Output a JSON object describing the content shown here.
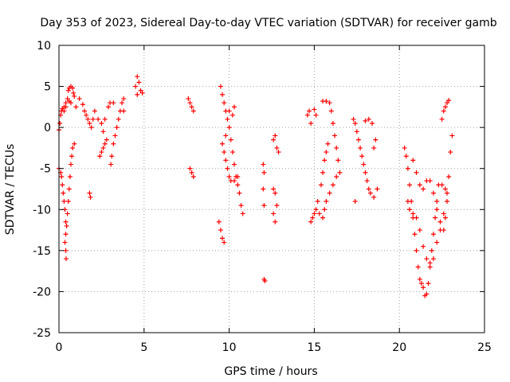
{
  "chart_data": {
    "type": "scatter",
    "title": "Day 353 of 2023, Sidereal Day-to-day VTEC variation (SDTVAR) for receiver gamb",
    "xlabel": "GPS time / hours",
    "ylabel": "SDTVAR / TECUs",
    "xlim": [
      0,
      25
    ],
    "ylim": [
      -25,
      10
    ],
    "xticks": [
      0,
      5,
      10,
      15,
      20,
      25
    ],
    "yticks": [
      -25,
      -20,
      -15,
      -10,
      -5,
      0,
      5,
      10
    ],
    "grid": true,
    "marker": "+",
    "series": [
      {
        "name": "SDTVAR",
        "color": "#ff0000",
        "points": [
          [
            0.0,
            -0.3
          ],
          [
            0.05,
            0.5
          ],
          [
            0.1,
            1.5
          ],
          [
            0.15,
            2.0
          ],
          [
            0.2,
            2.3
          ],
          [
            0.3,
            2.5
          ],
          [
            0.4,
            3.0
          ],
          [
            0.5,
            3.5
          ],
          [
            0.55,
            4.5
          ],
          [
            0.6,
            4.8
          ],
          [
            0.7,
            5.0
          ],
          [
            0.8,
            4.8
          ],
          [
            0.85,
            4.2
          ],
          [
            0.9,
            3.8
          ],
          [
            0.6,
            3.2
          ],
          [
            0.7,
            3.0
          ],
          [
            0.3,
            2.0
          ],
          [
            0.4,
            2.5
          ],
          [
            0.0,
            -5.0
          ],
          [
            0.1,
            -5.5
          ],
          [
            0.15,
            -6.0
          ],
          [
            0.2,
            -7.0
          ],
          [
            0.25,
            -8.0
          ],
          [
            0.3,
            -9.0
          ],
          [
            0.35,
            -10.0
          ],
          [
            0.4,
            -11.5
          ],
          [
            0.4,
            -13.0
          ],
          [
            0.4,
            -15.0
          ],
          [
            0.42,
            -16.0
          ],
          [
            0.45,
            -12.0
          ],
          [
            0.5,
            -10.5
          ],
          [
            0.55,
            -9.0
          ],
          [
            0.6,
            -7.5
          ],
          [
            0.65,
            -6.0
          ],
          [
            0.7,
            -4.5
          ],
          [
            0.75,
            -3.5
          ],
          [
            0.8,
            -2.5
          ],
          [
            0.9,
            -2.0
          ],
          [
            0.35,
            -14.0
          ],
          [
            1.0,
            2.5
          ],
          [
            1.2,
            3.5
          ],
          [
            1.4,
            2.8
          ],
          [
            1.5,
            2.0
          ],
          [
            1.6,
            1.5
          ],
          [
            1.7,
            1.0
          ],
          [
            1.8,
            0.5
          ],
          [
            1.9,
            0.0
          ],
          [
            2.0,
            1.0
          ],
          [
            2.1,
            2.0
          ],
          [
            1.8,
            -8.0
          ],
          [
            1.85,
            -8.5
          ],
          [
            2.3,
            1.0
          ],
          [
            2.5,
            0.5
          ],
          [
            2.6,
            -0.5
          ],
          [
            2.7,
            1.0
          ],
          [
            2.4,
            -3.5
          ],
          [
            2.5,
            -3.0
          ],
          [
            2.6,
            -2.5
          ],
          [
            2.7,
            -2.0
          ],
          [
            2.8,
            -1.5
          ],
          [
            2.9,
            2.5
          ],
          [
            3.0,
            3.0
          ],
          [
            3.05,
            -4.5
          ],
          [
            3.1,
            -3.5
          ],
          [
            3.2,
            -2.0
          ],
          [
            3.3,
            -1.0
          ],
          [
            3.4,
            0.0
          ],
          [
            3.5,
            1.0
          ],
          [
            3.6,
            2.0
          ],
          [
            3.7,
            3.0
          ],
          [
            3.8,
            2.0
          ],
          [
            3.8,
            3.5
          ],
          [
            3.2,
            3.0
          ],
          [
            4.6,
            6.2
          ],
          [
            4.7,
            5.5
          ],
          [
            4.8,
            4.5
          ],
          [
            4.9,
            4.2
          ],
          [
            4.5,
            5.0
          ],
          [
            4.6,
            4.0
          ],
          [
            7.6,
            3.5
          ],
          [
            7.7,
            3.0
          ],
          [
            7.8,
            2.5
          ],
          [
            7.9,
            2.0
          ],
          [
            7.7,
            -5.0
          ],
          [
            7.8,
            -5.5
          ],
          [
            7.9,
            -6.0
          ],
          [
            9.4,
            -11.5
          ],
          [
            9.5,
            -12.5
          ],
          [
            9.6,
            -13.5
          ],
          [
            9.7,
            -14.0
          ],
          [
            9.5,
            5.0
          ],
          [
            9.6,
            4.0
          ],
          [
            9.7,
            3.0
          ],
          [
            9.8,
            2.0
          ],
          [
            9.9,
            1.0
          ],
          [
            10.0,
            0.0
          ],
          [
            10.1,
            -1.5
          ],
          [
            10.2,
            -3.0
          ],
          [
            10.3,
            -4.5
          ],
          [
            10.4,
            -6.0
          ],
          [
            10.5,
            -7.0
          ],
          [
            10.6,
            -8.0
          ],
          [
            10.7,
            -9.5
          ],
          [
            10.8,
            -10.5
          ],
          [
            9.6,
            -2.0
          ],
          [
            9.7,
            -3.0
          ],
          [
            9.8,
            -4.0
          ],
          [
            9.9,
            -5.0
          ],
          [
            10.0,
            -6.0
          ],
          [
            10.1,
            -6.5
          ],
          [
            10.3,
            -6.5
          ],
          [
            10.5,
            -6.0
          ],
          [
            10.2,
            1.5
          ],
          [
            10.3,
            2.5
          ],
          [
            10.0,
            2.0
          ],
          [
            9.8,
            -1.0
          ],
          [
            12.0,
            -4.5
          ],
          [
            12.05,
            -5.5
          ],
          [
            12.0,
            -7.5
          ],
          [
            12.05,
            -9.5
          ],
          [
            12.05,
            -18.5
          ],
          [
            12.1,
            -18.7
          ],
          [
            12.6,
            -1.5
          ],
          [
            12.7,
            -1.0
          ],
          [
            12.8,
            -2.5
          ],
          [
            12.9,
            -3.0
          ],
          [
            12.6,
            -7.5
          ],
          [
            12.7,
            -8.0
          ],
          [
            12.8,
            -9.5
          ],
          [
            12.6,
            -10.5
          ],
          [
            12.7,
            -11.5
          ],
          [
            14.8,
            -11.5
          ],
          [
            14.9,
            -11.0
          ],
          [
            15.0,
            -10.5
          ],
          [
            15.1,
            -10.0
          ],
          [
            15.3,
            -10.5
          ],
          [
            15.2,
            -9.0
          ],
          [
            15.4,
            -7.0
          ],
          [
            15.5,
            -5.5
          ],
          [
            15.6,
            -4.0
          ],
          [
            15.7,
            -3.0
          ],
          [
            15.8,
            -2.0
          ],
          [
            14.6,
            1.5
          ],
          [
            14.7,
            2.0
          ],
          [
            14.8,
            0.5
          ],
          [
            15.0,
            2.2
          ],
          [
            15.1,
            1.5
          ],
          [
            15.5,
            3.2
          ],
          [
            15.7,
            3.2
          ],
          [
            15.9,
            3.0
          ],
          [
            16.0,
            2.0
          ],
          [
            16.1,
            0.5
          ],
          [
            16.2,
            -1.0
          ],
          [
            16.3,
            -2.5
          ],
          [
            16.4,
            -4.0
          ],
          [
            16.5,
            -5.5
          ],
          [
            16.3,
            -6.0
          ],
          [
            16.1,
            -7.0
          ],
          [
            15.9,
            -8.0
          ],
          [
            15.7,
            -9.0
          ],
          [
            15.6,
            -10.0
          ],
          [
            15.5,
            -11.0
          ],
          [
            17.3,
            1.0
          ],
          [
            17.4,
            0.5
          ],
          [
            17.5,
            -0.5
          ],
          [
            17.6,
            -1.5
          ],
          [
            17.7,
            -2.5
          ],
          [
            17.8,
            -3.5
          ],
          [
            17.9,
            -4.5
          ],
          [
            18.0,
            -5.5
          ],
          [
            18.1,
            -6.5
          ],
          [
            18.2,
            -7.5
          ],
          [
            18.3,
            -8.0
          ],
          [
            18.5,
            -8.5
          ],
          [
            18.7,
            -7.5
          ],
          [
            18.0,
            0.8
          ],
          [
            18.2,
            1.0
          ],
          [
            18.4,
            0.5
          ],
          [
            18.6,
            -1.5
          ],
          [
            18.5,
            -2.5
          ],
          [
            17.4,
            -9.0
          ],
          [
            20.3,
            -2.5
          ],
          [
            20.4,
            -3.5
          ],
          [
            20.5,
            -5.0
          ],
          [
            20.6,
            -7.0
          ],
          [
            20.7,
            -9.0
          ],
          [
            20.8,
            -11.0
          ],
          [
            20.9,
            -13.0
          ],
          [
            21.0,
            -15.0
          ],
          [
            21.1,
            -17.0
          ],
          [
            21.2,
            -18.5
          ],
          [
            21.3,
            -19.0
          ],
          [
            21.4,
            -19.5
          ],
          [
            21.5,
            -20.5
          ],
          [
            21.6,
            -20.3
          ],
          [
            21.7,
            -19.0
          ],
          [
            21.8,
            -17.0
          ],
          [
            21.9,
            -15.0
          ],
          [
            22.0,
            -13.0
          ],
          [
            22.1,
            -11.0
          ],
          [
            22.2,
            -9.0
          ],
          [
            22.3,
            -7.0
          ],
          [
            20.5,
            -9.0
          ],
          [
            20.6,
            -10.0
          ],
          [
            20.8,
            -10.5
          ],
          [
            21.0,
            -11.0
          ],
          [
            21.2,
            -12.5
          ],
          [
            21.4,
            -14.5
          ],
          [
            21.6,
            -16.0
          ],
          [
            21.8,
            -16.5
          ],
          [
            22.0,
            -16.0
          ],
          [
            22.2,
            -14.0
          ],
          [
            22.4,
            -12.5
          ],
          [
            22.6,
            -10.5
          ],
          [
            22.8,
            -8.0
          ],
          [
            20.8,
            -4.0
          ],
          [
            21.0,
            -5.5
          ],
          [
            21.2,
            -7.0
          ],
          [
            21.4,
            -7.5
          ],
          [
            21.6,
            -6.5
          ],
          [
            21.8,
            -6.5
          ],
          [
            22.0,
            -8.0
          ],
          [
            22.2,
            -10.0
          ],
          [
            22.4,
            -11.5
          ],
          [
            22.6,
            -12.5
          ],
          [
            22.7,
            -11.0
          ],
          [
            22.8,
            -9.0
          ],
          [
            22.9,
            -6.0
          ],
          [
            23.0,
            -3.0
          ],
          [
            23.1,
            -1.0
          ],
          [
            22.5,
            -7.0
          ],
          [
            22.7,
            -7.5
          ],
          [
            22.6,
            2.0
          ],
          [
            22.7,
            2.5
          ],
          [
            22.8,
            3.0
          ],
          [
            22.9,
            3.3
          ],
          [
            22.5,
            1.0
          ]
        ]
      }
    ]
  }
}
